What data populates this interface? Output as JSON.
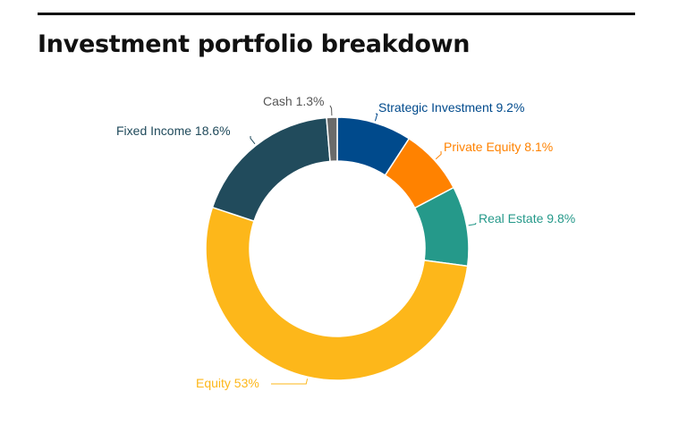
{
  "chart_data": {
    "type": "pie",
    "variant": "donut",
    "title": "Investment portfolio breakdown",
    "unit": "%",
    "slices": [
      {
        "name": "Strategic Investment",
        "value": 9.2,
        "label": "Strategic Investment 9.2%",
        "color": "#004a8c"
      },
      {
        "name": "Private Equity",
        "value": 8.1,
        "label": "Private Equity 8.1%",
        "color": "#ff8200"
      },
      {
        "name": "Real Estate",
        "value": 9.8,
        "label": "Real Estate 9.8%",
        "color": "#25998a"
      },
      {
        "name": "Equity",
        "value": 53,
        "label": "Equity 53%",
        "color": "#fdb71a"
      },
      {
        "name": "Fixed Income",
        "value": 18.6,
        "label": "Fixed Income 18.6%",
        "color": "#214b5c"
      },
      {
        "name": "Cash",
        "value": 1.3,
        "label": "Cash 1.3%",
        "color": "#6a6a6a"
      }
    ],
    "label_colors": {
      "Strategic Investment": "#004a8c",
      "Private Equity": "#ff8200",
      "Real Estate": "#25998a",
      "Equity": "#fdb71a",
      "Fixed Income": "#214b5c",
      "Cash": "#555555"
    },
    "legend": "none",
    "grid": false
  }
}
